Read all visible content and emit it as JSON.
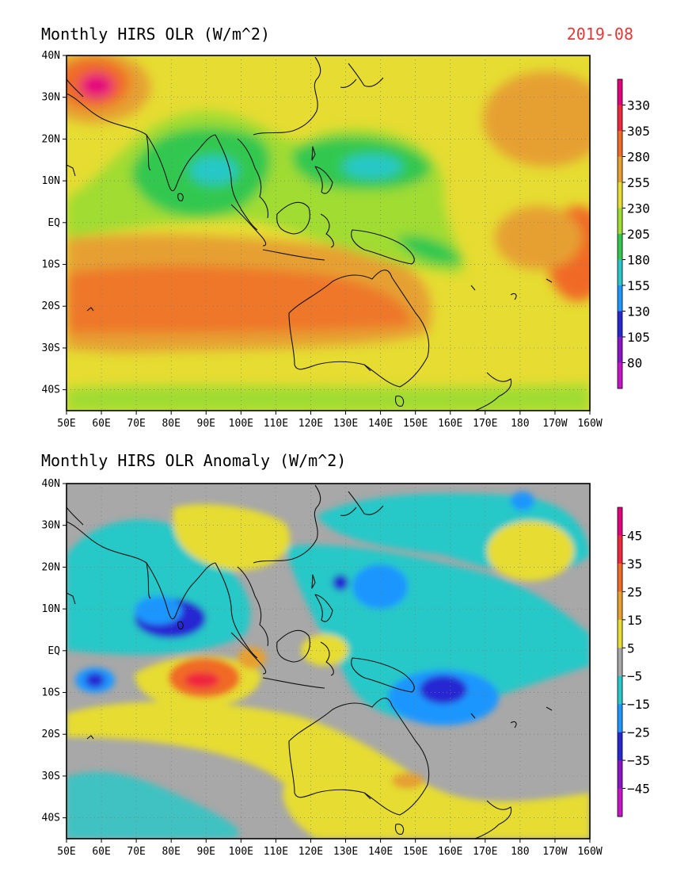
{
  "date_label": "2019-08",
  "colors": {
    "date": "#e03a3a"
  },
  "axes": {
    "x_ticks": [
      "50E",
      "60E",
      "70E",
      "80E",
      "90E",
      "100E",
      "110E",
      "120E",
      "130E",
      "140E",
      "150E",
      "160E",
      "170E",
      "180",
      "170W",
      "160W"
    ],
    "y_ticks": [
      "40N",
      "30N",
      "20N",
      "10N",
      "EQ",
      "10S",
      "20S",
      "30S",
      "40S"
    ],
    "lon_range": [
      50,
      200
    ],
    "lat_range": [
      -45,
      40
    ]
  },
  "panels": [
    {
      "id": "olr",
      "title": "Monthly HIRS OLR (W/m^2)",
      "field": "total",
      "colorbar": {
        "labels": [
          "330",
          "305",
          "280",
          "255",
          "230",
          "205",
          "180",
          "155",
          "130",
          "105",
          "80"
        ],
        "colors": [
          "#e6007e",
          "#f0283c",
          "#f06a28",
          "#e6a030",
          "#e6dc32",
          "#a0dc32",
          "#32c850",
          "#28c8c8",
          "#1e96ff",
          "#2828d2",
          "#8c14c8",
          "#c814c8"
        ]
      }
    },
    {
      "id": "anomaly",
      "title": "Monthly HIRS OLR Anomaly (W/m^2)",
      "field": "anomaly",
      "colorbar": {
        "labels": [
          "45",
          "35",
          "25",
          "15",
          "5",
          "−5",
          "−15",
          "−25",
          "−35",
          "−45"
        ],
        "colors": [
          "#e6007e",
          "#f0283c",
          "#f06a28",
          "#e6a030",
          "#e6dc32",
          "#a8a8a8",
          "#28c8c8",
          "#1e96ff",
          "#2828d2",
          "#8c14c8",
          "#c814c8"
        ]
      }
    }
  ],
  "chart_data": [
    {
      "type": "heatmap",
      "title": "Monthly HIRS OLR (W/m^2)",
      "units": "W/m^2",
      "x_range": [
        "50E",
        "160W"
      ],
      "y_range": [
        "45S",
        "40N"
      ],
      "levels": [
        80,
        105,
        130,
        155,
        180,
        205,
        230,
        255,
        280,
        305,
        330
      ],
      "regions": [
        {
          "lon": 60,
          "lat": 30,
          "value": 335
        },
        {
          "lon": 55,
          "lat": 22,
          "value": 290
        },
        {
          "lon": 95,
          "lat": 12,
          "value": 170
        },
        {
          "lon": 80,
          "lat": 8,
          "value": 185
        },
        {
          "lon": 138,
          "lat": 12,
          "value": 165
        },
        {
          "lon": 155,
          "lat": -6,
          "value": 180
        },
        {
          "lon": 100,
          "lat": -15,
          "value": 285
        },
        {
          "lon": 130,
          "lat": -22,
          "value": 285
        },
        {
          "lon": 190,
          "lat": 22,
          "value": 265
        },
        {
          "lon": 195,
          "lat": -10,
          "value": 285
        },
        {
          "lon": 120,
          "lat": -40,
          "value": 240
        }
      ]
    },
    {
      "type": "heatmap",
      "title": "Monthly HIRS OLR Anomaly (W/m^2)",
      "units": "W/m^2",
      "x_range": [
        "50E",
        "160W"
      ],
      "y_range": [
        "45S",
        "40N"
      ],
      "levels": [
        -45,
        -35,
        -25,
        -15,
        -5,
        5,
        15,
        25,
        35,
        45
      ],
      "regions": [
        {
          "lon": 75,
          "lat": 10,
          "value": -40
        },
        {
          "lon": 58,
          "lat": -8,
          "value": -32
        },
        {
          "lon": 90,
          "lat": -8,
          "value": 38
        },
        {
          "lon": 105,
          "lat": -3,
          "value": 18
        },
        {
          "lon": 160,
          "lat": -12,
          "value": -32
        },
        {
          "lon": 140,
          "lat": 15,
          "value": -30
        },
        {
          "lon": 190,
          "lat": 27,
          "value": 16
        },
        {
          "lon": 125,
          "lat": -32,
          "value": 10
        },
        {
          "lon": 120,
          "lat": 28,
          "value": 12
        }
      ]
    }
  ]
}
